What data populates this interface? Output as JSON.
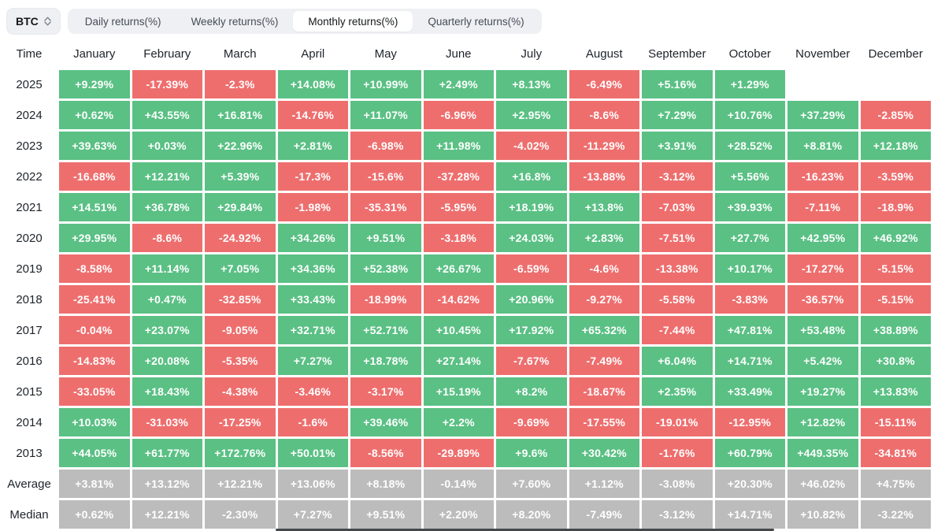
{
  "toolbar": {
    "symbol": "BTC",
    "tabs": [
      {
        "label": "Daily returns(%)",
        "active": false
      },
      {
        "label": "Weekly returns(%)",
        "active": false
      },
      {
        "label": "Monthly returns(%)",
        "active": true
      },
      {
        "label": "Quarterly returns(%)",
        "active": false
      }
    ]
  },
  "colors": {
    "positive_green": "#5ac084",
    "negative_red": "#ee6e6e",
    "neutral_gray": "#bcbcbc"
  },
  "table": {
    "time_header": "Time",
    "months": [
      "January",
      "February",
      "March",
      "April",
      "May",
      "June",
      "July",
      "August",
      "September",
      "October",
      "November",
      "December"
    ],
    "rows": [
      {
        "label": "2025",
        "type": "year",
        "values": [
          "+9.29%",
          "-17.39%",
          "-2.3%",
          "+14.08%",
          "+10.99%",
          "+2.49%",
          "+8.13%",
          "-6.49%",
          "+5.16%",
          "+1.29%",
          "",
          ""
        ]
      },
      {
        "label": "2024",
        "type": "year",
        "values": [
          "+0.62%",
          "+43.55%",
          "+16.81%",
          "-14.76%",
          "+11.07%",
          "-6.96%",
          "+2.95%",
          "-8.6%",
          "+7.29%",
          "+10.76%",
          "+37.29%",
          "-2.85%"
        ]
      },
      {
        "label": "2023",
        "type": "year",
        "values": [
          "+39.63%",
          "+0.03%",
          "+22.96%",
          "+2.81%",
          "-6.98%",
          "+11.98%",
          "-4.02%",
          "-11.29%",
          "+3.91%",
          "+28.52%",
          "+8.81%",
          "+12.18%"
        ]
      },
      {
        "label": "2022",
        "type": "year",
        "values": [
          "-16.68%",
          "+12.21%",
          "+5.39%",
          "-17.3%",
          "-15.6%",
          "-37.28%",
          "+16.8%",
          "-13.88%",
          "-3.12%",
          "+5.56%",
          "-16.23%",
          "-3.59%"
        ]
      },
      {
        "label": "2021",
        "type": "year",
        "values": [
          "+14.51%",
          "+36.78%",
          "+29.84%",
          "-1.98%",
          "-35.31%",
          "-5.95%",
          "+18.19%",
          "+13.8%",
          "-7.03%",
          "+39.93%",
          "-7.11%",
          "-18.9%"
        ]
      },
      {
        "label": "2020",
        "type": "year",
        "values": [
          "+29.95%",
          "-8.6%",
          "-24.92%",
          "+34.26%",
          "+9.51%",
          "-3.18%",
          "+24.03%",
          "+2.83%",
          "-7.51%",
          "+27.7%",
          "+42.95%",
          "+46.92%"
        ]
      },
      {
        "label": "2019",
        "type": "year",
        "values": [
          "-8.58%",
          "+11.14%",
          "+7.05%",
          "+34.36%",
          "+52.38%",
          "+26.67%",
          "-6.59%",
          "-4.6%",
          "-13.38%",
          "+10.17%",
          "-17.27%",
          "-5.15%"
        ]
      },
      {
        "label": "2018",
        "type": "year",
        "values": [
          "-25.41%",
          "+0.47%",
          "-32.85%",
          "+33.43%",
          "-18.99%",
          "-14.62%",
          "+20.96%",
          "-9.27%",
          "-5.58%",
          "-3.83%",
          "-36.57%",
          "-5.15%"
        ]
      },
      {
        "label": "2017",
        "type": "year",
        "values": [
          "-0.04%",
          "+23.07%",
          "-9.05%",
          "+32.71%",
          "+52.71%",
          "+10.45%",
          "+17.92%",
          "+65.32%",
          "-7.44%",
          "+47.81%",
          "+53.48%",
          "+38.89%"
        ]
      },
      {
        "label": "2016",
        "type": "year",
        "values": [
          "-14.83%",
          "+20.08%",
          "-5.35%",
          "+7.27%",
          "+18.78%",
          "+27.14%",
          "-7.67%",
          "-7.49%",
          "+6.04%",
          "+14.71%",
          "+5.42%",
          "+30.8%"
        ]
      },
      {
        "label": "2015",
        "type": "year",
        "values": [
          "-33.05%",
          "+18.43%",
          "-4.38%",
          "-3.46%",
          "-3.17%",
          "+15.19%",
          "+8.2%",
          "-18.67%",
          "+2.35%",
          "+33.49%",
          "+19.27%",
          "+13.83%"
        ]
      },
      {
        "label": "2014",
        "type": "year",
        "values": [
          "+10.03%",
          "-31.03%",
          "-17.25%",
          "-1.6%",
          "+39.46%",
          "+2.2%",
          "-9.69%",
          "-17.55%",
          "-19.01%",
          "-12.95%",
          "+12.82%",
          "-15.11%"
        ]
      },
      {
        "label": "2013",
        "type": "year",
        "values": [
          "+44.05%",
          "+61.77%",
          "+172.76%",
          "+50.01%",
          "-8.56%",
          "-29.89%",
          "+9.6%",
          "+30.42%",
          "-1.76%",
          "+60.79%",
          "+449.35%",
          "-34.81%"
        ]
      },
      {
        "label": "Average",
        "type": "stat",
        "values": [
          "+3.81%",
          "+13.12%",
          "+12.21%",
          "+13.06%",
          "+8.18%",
          "-0.14%",
          "+7.60%",
          "+1.12%",
          "-3.08%",
          "+20.30%",
          "+46.02%",
          "+4.75%"
        ]
      },
      {
        "label": "Median",
        "type": "stat",
        "values": [
          "+0.62%",
          "+12.21%",
          "-2.30%",
          "+7.27%",
          "+9.51%",
          "+2.20%",
          "+8.20%",
          "-7.49%",
          "-3.12%",
          "+14.71%",
          "+10.82%",
          "-3.22%"
        ]
      }
    ]
  }
}
